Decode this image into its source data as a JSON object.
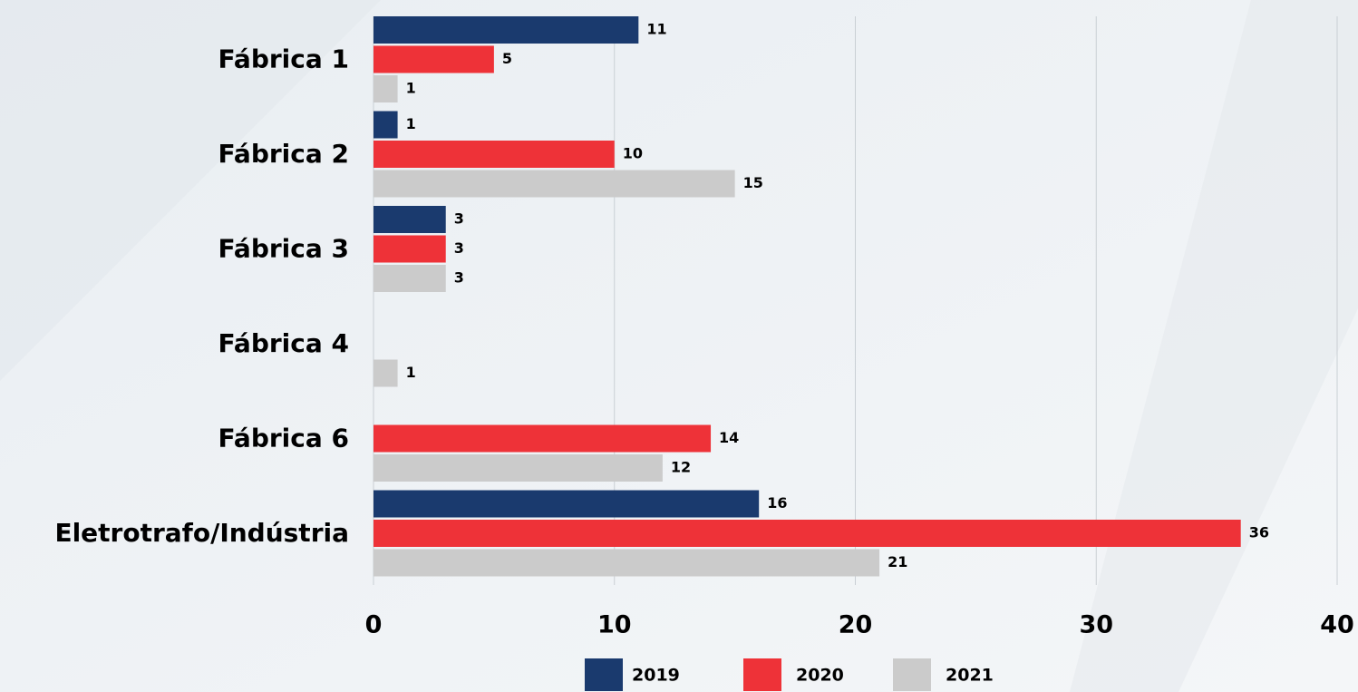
{
  "chart_data": {
    "type": "bar",
    "orientation": "horizontal",
    "categories": [
      "Fábrica 1",
      "Fábrica 2",
      "Fábrica 3",
      "Fábrica 4",
      "Fábrica 6",
      "Eletrotrafo/Indústria"
    ],
    "series": [
      {
        "name": "2019",
        "color": "#1a3a6e",
        "values": [
          11,
          1,
          3,
          null,
          null,
          16
        ]
      },
      {
        "name": "2020",
        "color": "#ee3238",
        "values": [
          5,
          10,
          3,
          null,
          14,
          36
        ]
      },
      {
        "name": "2021",
        "color": "#cbcbcb",
        "values": [
          1,
          15,
          3,
          1,
          12,
          21
        ]
      }
    ],
    "xlim": [
      0,
      40
    ],
    "xticks": [
      0,
      10,
      20,
      30,
      40
    ],
    "grid": true,
    "legend": "bottom"
  }
}
